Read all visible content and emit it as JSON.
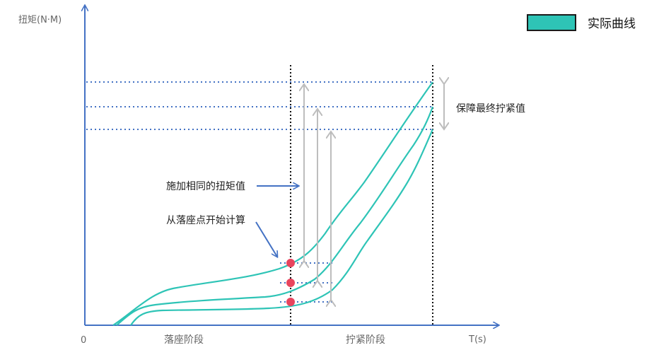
{
  "labels": {
    "y_axis": "扭矩(N·M)",
    "x_axis": "T(s)",
    "origin": "0",
    "phase_seating": "落座阶段",
    "phase_tightening": "拧紧阶段",
    "same_torque": "施加相同的扭矩值",
    "start_point": "从落座点开始计算",
    "final_torque": "保障最终拧紧值"
  },
  "legend": {
    "label": "实际曲线",
    "color": "#2ec4b6"
  },
  "colors": {
    "axis": "#4472c4",
    "curve": "#2ec4b6",
    "dot": "#e8455e",
    "arrow": "#bdbdbd",
    "guide": "#4472c4",
    "phase_line": "#111111"
  }
}
